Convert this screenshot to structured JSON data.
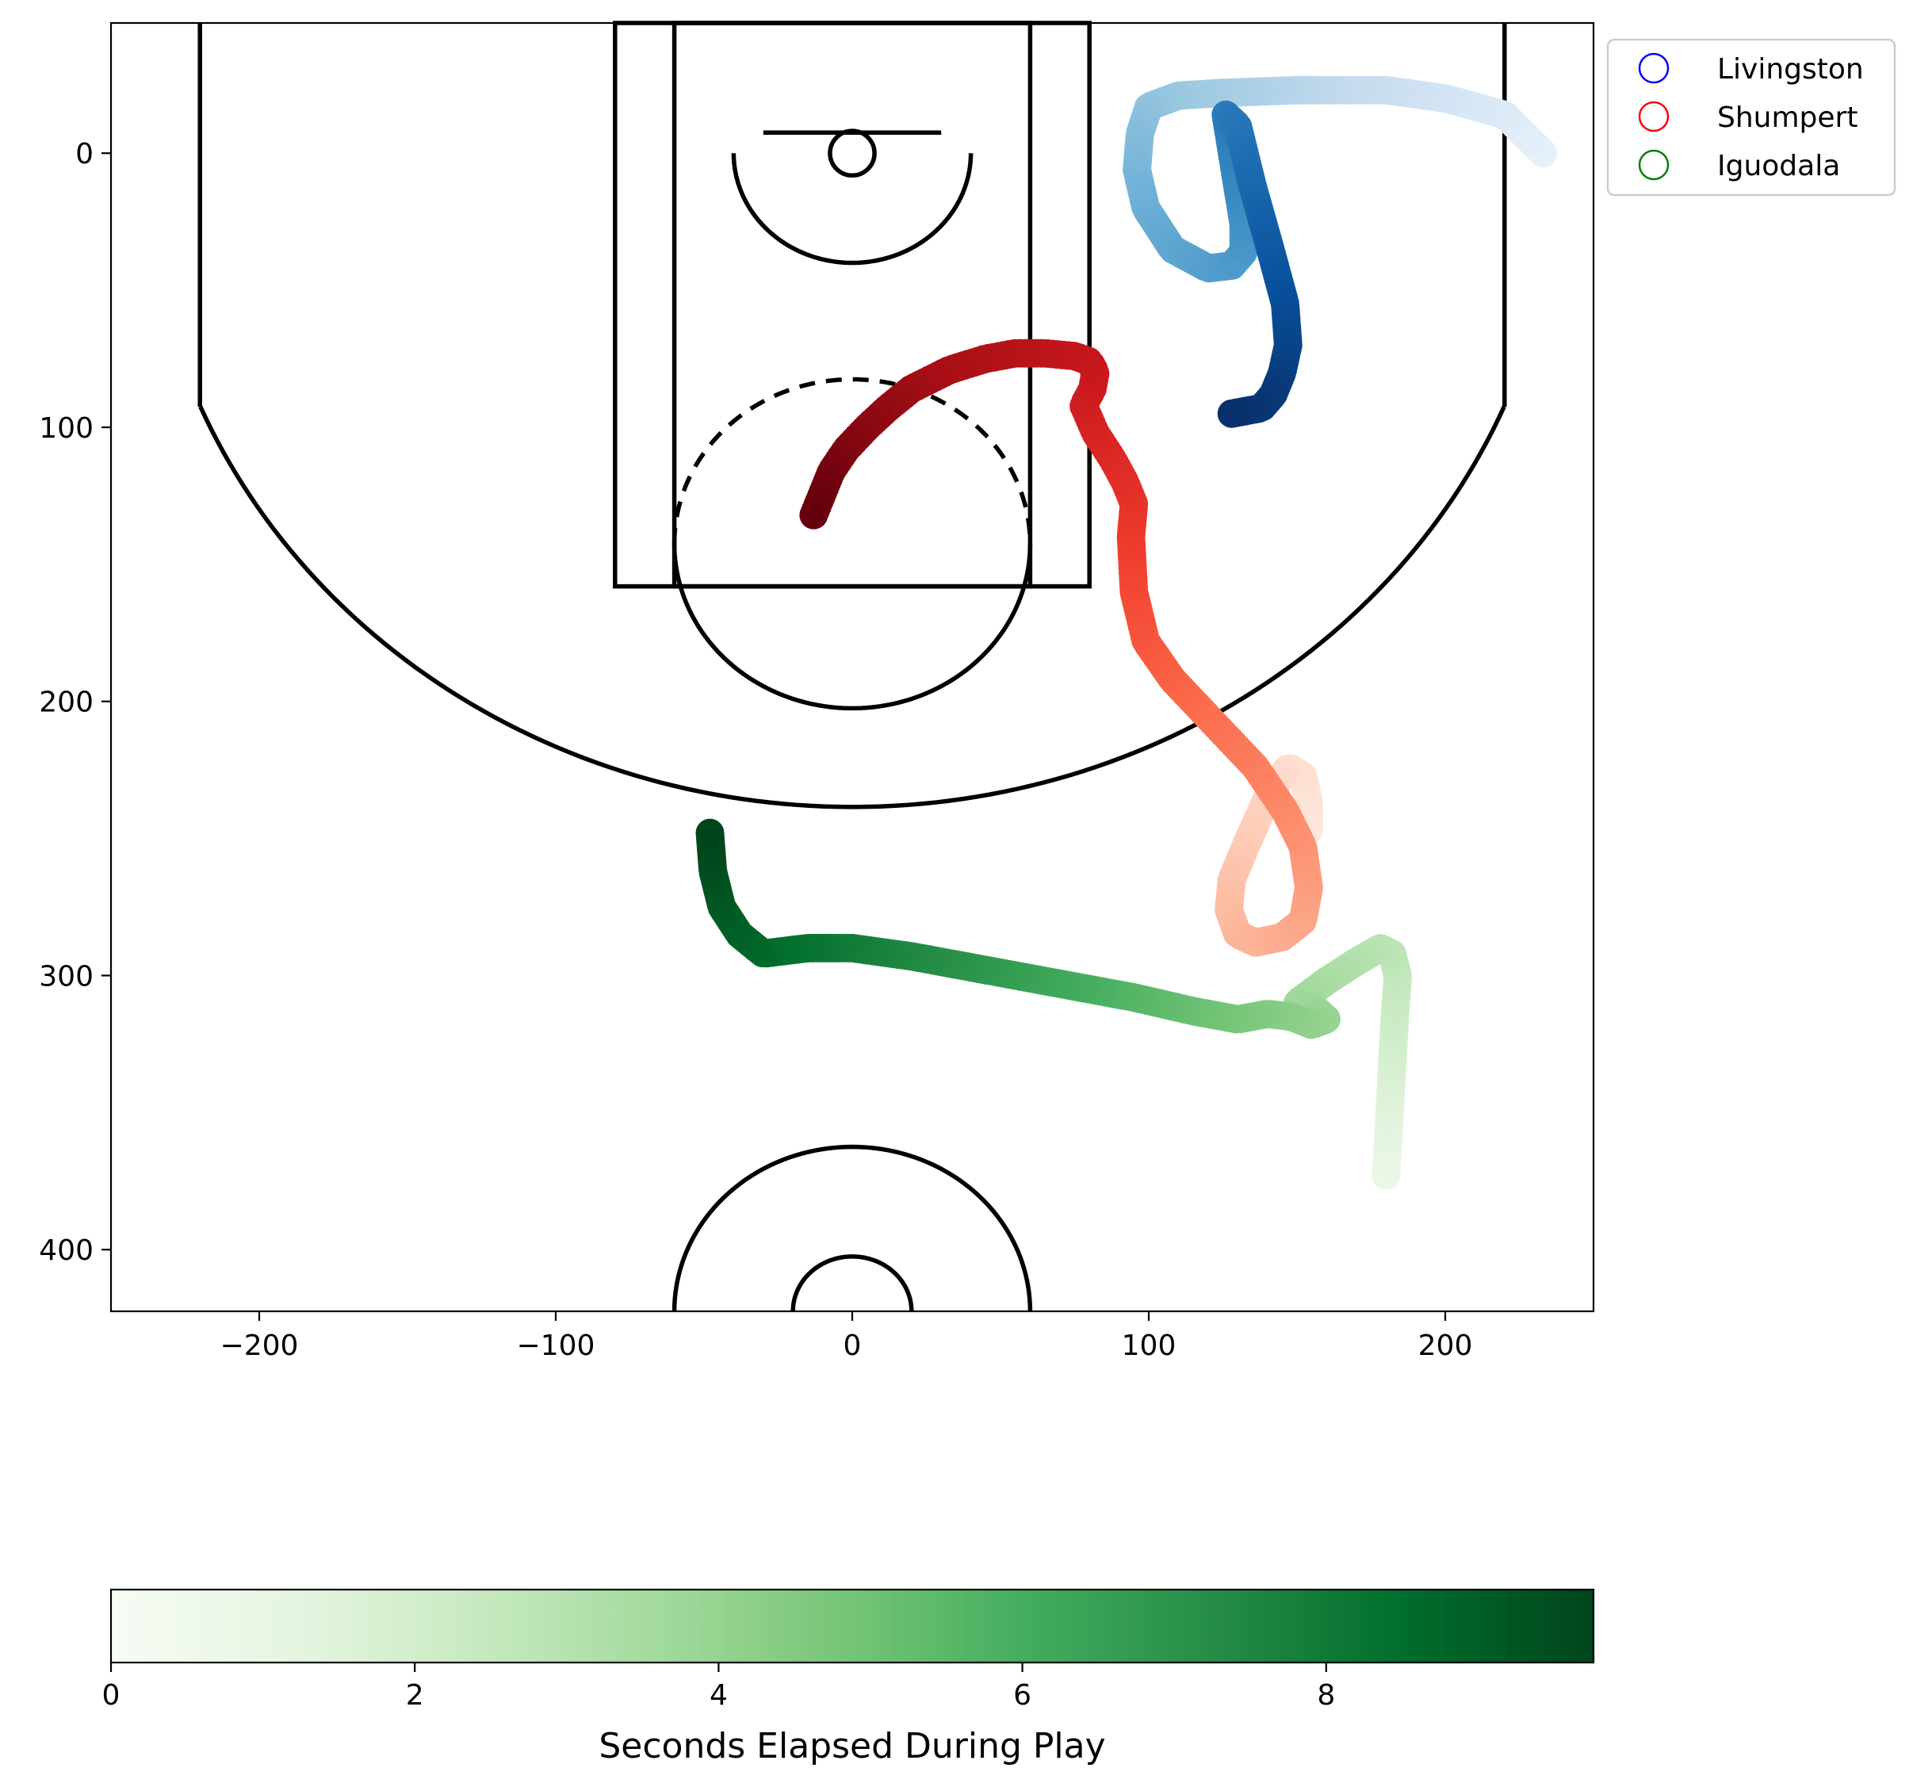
{
  "chart_data": {
    "type": "scatter",
    "title": "",
    "xlabel": "",
    "ylabel": "",
    "xlim": [
      -250,
      250
    ],
    "ylim": [
      422.5,
      -47.5
    ],
    "y_inverted": true,
    "x_ticks": [
      -200,
      -100,
      0,
      100,
      200
    ],
    "x_tick_labels": [
      "−200",
      "−100",
      "0",
      "100",
      "200"
    ],
    "y_ticks": [
      0,
      100,
      200,
      300,
      400
    ],
    "y_tick_labels": [
      "0",
      "100",
      "200",
      "300",
      "400"
    ],
    "grid": false,
    "legend_position": "outside-top-right",
    "colorbar": {
      "label": "Seconds Elapsed During Play",
      "range": [
        0,
        9.76
      ],
      "ticks": [
        0,
        2,
        4,
        6,
        8
      ],
      "tick_labels": [
        "0",
        "2",
        "4",
        "6",
        "8"
      ],
      "colormap": "Greens",
      "colors": [
        "#f7fcf5",
        "#e5f5e0",
        "#c7e9c0",
        "#a1d99b",
        "#74c476",
        "#41ab5d",
        "#238b45",
        "#006d2c",
        "#00441b"
      ]
    },
    "series": [
      {
        "name": "Livingston",
        "legend_color": "#0000ff",
        "colormap": "Blues",
        "colors": [
          "#f7fbff",
          "#deebf7",
          "#c6dbef",
          "#9ecae1",
          "#6baed6",
          "#4292c6",
          "#2171b5",
          "#08519c",
          "#08306b"
        ],
        "x": [
          233,
          220,
          200,
          180,
          150,
          125,
          110,
          100,
          97,
          96,
          99,
          108,
          120,
          128,
          132,
          132,
          126,
          130,
          135,
          141,
          146,
          147,
          145,
          142,
          138,
          128
        ],
        "y": [
          0,
          -14,
          -20,
          -23,
          -23,
          -22,
          -21,
          -17,
          -7,
          6,
          20,
          35,
          42,
          41,
          36,
          26,
          -14,
          -10,
          12,
          35,
          55,
          70,
          80,
          88,
          93,
          95
        ]
      },
      {
        "name": "Shumpert",
        "legend_color": "#ff0000",
        "colormap": "Reds",
        "colors": [
          "#fff5f0",
          "#fee0d2",
          "#fcbba1",
          "#fc9272",
          "#fb6a4a",
          "#ef3b2c",
          "#cb181d",
          "#a50f15",
          "#67000d"
        ],
        "x": [
          154,
          154,
          152,
          147,
          140,
          133,
          128,
          127,
          130,
          136,
          145,
          152,
          154,
          152,
          146,
          136,
          122,
          108,
          99,
          95,
          94,
          95,
          92,
          88,
          82,
          78,
          81,
          82,
          80,
          75,
          65,
          55,
          45,
          33,
          20,
          12,
          5,
          -2,
          -7,
          -10,
          -13
        ],
        "y": [
          247,
          237,
          227,
          224,
          235,
          252,
          265,
          276,
          285,
          288,
          286,
          280,
          268,
          253,
          240,
          224,
          208,
          192,
          178,
          160,
          140,
          128,
          120,
          112,
          102,
          92,
          86,
          80,
          76,
          74,
          73,
          73,
          75,
          79,
          86,
          93,
          100,
          108,
          116,
          124,
          132
        ]
      },
      {
        "name": "Iguodala",
        "legend_color": "#008000",
        "colormap": "Greens",
        "colors": [
          "#f7fcf5",
          "#e5f5e0",
          "#c7e9c0",
          "#a1d99b",
          "#74c476",
          "#41ab5d",
          "#238b45",
          "#006d2c",
          "#00441b"
        ],
        "x": [
          180,
          181,
          182,
          183,
          184,
          182,
          178,
          170,
          160,
          150,
          156,
          160,
          155,
          148,
          140,
          130,
          115,
          95,
          70,
          45,
          20,
          0,
          -15,
          -30,
          -38,
          -44,
          -47,
          -48
        ],
        "y": [
          373,
          355,
          335,
          315,
          300,
          292,
          290,
          295,
          302,
          310,
          312,
          316,
          318,
          315,
          314,
          316,
          313,
          308,
          303,
          298,
          293,
          290,
          290,
          292,
          285,
          275,
          262,
          248
        ]
      }
    ]
  }
}
